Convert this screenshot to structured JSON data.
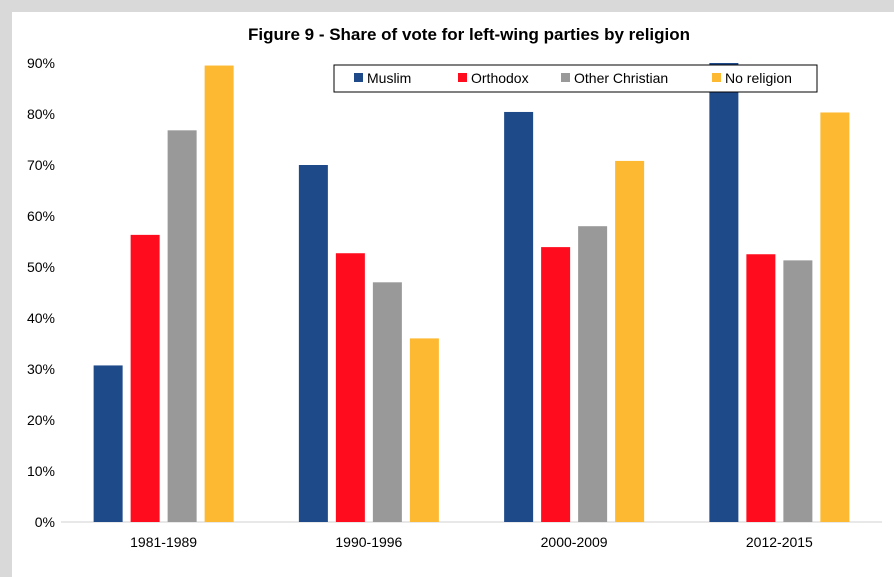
{
  "chart_data": {
    "type": "bar",
    "title": "Figure 9 - Share of vote for left-wing parties by religion",
    "xlabel": "",
    "ylabel": "",
    "categories": [
      "1981-1989",
      "1990-1996",
      "2000-2009",
      "2012-2015"
    ],
    "series": [
      {
        "name": "Muslim",
        "color": "#1f4a8a",
        "values": [
          30.7,
          70.0,
          80.4,
          90.0
        ]
      },
      {
        "name": "Orthodox",
        "color": "#ff0d1f",
        "values": [
          56.3,
          52.7,
          53.9,
          52.5
        ]
      },
      {
        "name": "Other Christian",
        "color": "#999999",
        "values": [
          76.8,
          47.0,
          58.0,
          51.3
        ]
      },
      {
        "name": "No religion",
        "color": "#fdb931",
        "values": [
          89.5,
          36.0,
          70.8,
          80.3
        ]
      }
    ],
    "ylim": [
      0,
      90
    ],
    "yticks": [
      "0%",
      "10%",
      "20%",
      "30%",
      "40%",
      "50%",
      "60%",
      "70%",
      "80%",
      "90%"
    ],
    "grid": false,
    "legend_position": "top-right"
  }
}
